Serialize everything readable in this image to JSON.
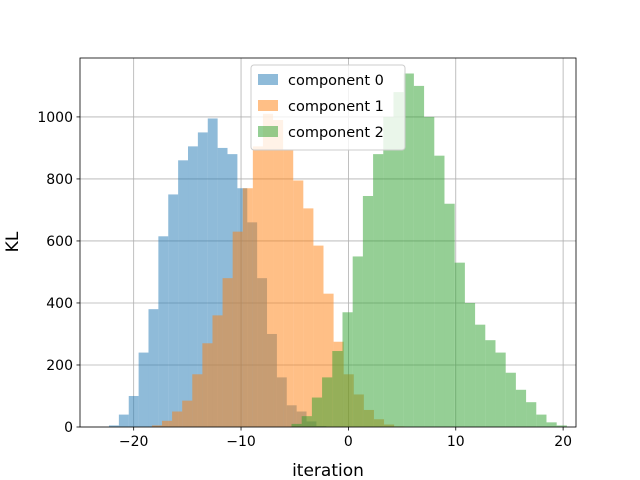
{
  "chart_data": {
    "type": "histogram",
    "title": "",
    "xlabel": "iteration",
    "ylabel": "KL",
    "xlim": [
      -25.0,
      21.2
    ],
    "ylim": [
      0,
      1190
    ],
    "xticks": [
      -20,
      -10,
      0,
      10,
      20
    ],
    "xtick_labels": [
      "−20",
      "−10",
      "0",
      "10",
      "20"
    ],
    "yticks": [
      0,
      200,
      400,
      600,
      800,
      1000
    ],
    "ytick_labels": [
      "0",
      "200",
      "400",
      "600",
      "800",
      "1000"
    ],
    "grid": true,
    "legend_position": "top-center",
    "bar_alpha": 0.5,
    "series": [
      {
        "name": "component 0",
        "color": "#1f77b4",
        "bin_start": -22.3,
        "bin_width": 0.92,
        "counts": [
          5,
          40,
          100,
          240,
          380,
          615,
          750,
          860,
          905,
          950,
          995,
          900,
          880,
          770,
          660,
          480,
          300,
          160,
          70,
          50,
          18,
          3
        ]
      },
      {
        "name": "component 1",
        "color": "#ff7f0e",
        "bin_start": -18.3,
        "bin_width": 0.94,
        "counts": [
          5,
          20,
          50,
          85,
          170,
          270,
          360,
          480,
          630,
          770,
          905,
          1010,
          990,
          895,
          795,
          705,
          585,
          430,
          275,
          170,
          105,
          55,
          25,
          8,
          2
        ]
      },
      {
        "name": "component 2",
        "color": "#2ca02c",
        "bin_start": -5.3,
        "bin_width": 0.95,
        "counts": [
          10,
          35,
          95,
          160,
          245,
          370,
          550,
          745,
          880,
          1000,
          1080,
          1140,
          1100,
          1000,
          875,
          720,
          530,
          400,
          330,
          280,
          240,
          175,
          120,
          80,
          40,
          15,
          5
        ]
      }
    ]
  }
}
